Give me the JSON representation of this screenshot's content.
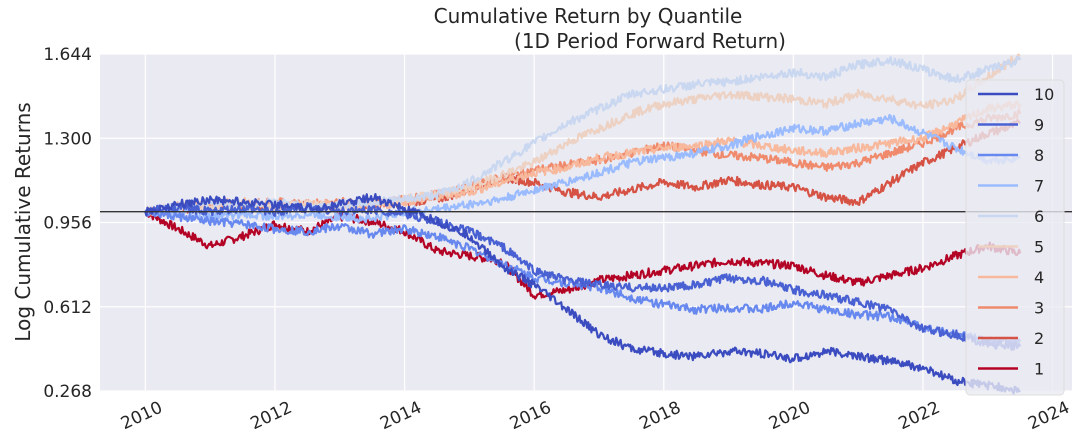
{
  "chart_data": {
    "type": "line",
    "title_line1": "Cumulative Return by Quantile",
    "title_line2": "(1D Period Forward Return)",
    "xlabel": "",
    "ylabel": "Log Cumulative Returns",
    "y_ticks": [
      "0.268",
      "0.612",
      "0.956",
      "1.300",
      "1.644"
    ],
    "ylim": [
      0.268,
      1.644
    ],
    "xlim": [
      2009.3,
      2024.3
    ],
    "x_ticks": [
      "2010",
      "2012",
      "2014",
      "2016",
      "2018",
      "2020",
      "2022",
      "2024"
    ],
    "reference_line": 1.0,
    "grid": true,
    "legend_position": "right",
    "colors": {
      "plot_bg": "#eaeaf2",
      "grid": "#ffffff",
      "reference": "#333333"
    },
    "series": [
      {
        "name": "10",
        "color": "#3b4cc0",
        "x": [
          2010.0,
          2010.5,
          2011.0,
          2011.5,
          2012.0,
          2012.5,
          2013.0,
          2013.5,
          2014.0,
          2014.5,
          2015.0,
          2015.5,
          2016.0,
          2016.5,
          2017.0,
          2017.5,
          2018.0,
          2018.5,
          2019.0,
          2019.5,
          2020.0,
          2020.5,
          2021.0,
          2021.5,
          2022.0,
          2022.5,
          2023.0,
          2023.5
        ],
        "y": [
          1.0,
          1.03,
          1.05,
          1.04,
          1.03,
          1.01,
          1.03,
          1.06,
          1.01,
          0.96,
          0.9,
          0.78,
          0.7,
          0.6,
          0.5,
          0.44,
          0.42,
          0.41,
          0.43,
          0.42,
          0.4,
          0.43,
          0.41,
          0.39,
          0.36,
          0.31,
          0.29,
          0.27
        ]
      },
      {
        "name": "9",
        "color": "#4961d2",
        "x": [
          2010.0,
          2010.5,
          2011.0,
          2011.5,
          2012.0,
          2012.5,
          2013.0,
          2013.5,
          2014.0,
          2014.5,
          2015.0,
          2015.5,
          2016.0,
          2016.5,
          2017.0,
          2017.5,
          2018.0,
          2018.5,
          2019.0,
          2019.5,
          2020.0,
          2020.5,
          2021.0,
          2021.5,
          2022.0,
          2022.5,
          2023.0,
          2023.5
        ],
        "y": [
          1.0,
          1.02,
          1.0,
          1.01,
          1.0,
          1.02,
          1.0,
          1.01,
          0.99,
          0.96,
          0.92,
          0.86,
          0.76,
          0.72,
          0.7,
          0.69,
          0.69,
          0.7,
          0.73,
          0.72,
          0.68,
          0.66,
          0.63,
          0.6,
          0.52,
          0.5,
          0.46,
          0.45
        ]
      },
      {
        "name": "8",
        "color": "#6788ee",
        "x": [
          2010.0,
          2010.5,
          2011.0,
          2011.5,
          2012.0,
          2012.5,
          2013.0,
          2013.5,
          2014.0,
          2014.5,
          2015.0,
          2015.5,
          2016.0,
          2016.5,
          2017.0,
          2017.5,
          2018.0,
          2018.5,
          2019.0,
          2019.5,
          2020.0,
          2020.5,
          2021.0,
          2021.5,
          2022.0,
          2022.5,
          2023.0,
          2023.5
        ],
        "y": [
          1.0,
          0.98,
          0.96,
          0.95,
          0.93,
          0.92,
          0.94,
          0.91,
          0.93,
          0.9,
          0.85,
          0.79,
          0.73,
          0.71,
          0.69,
          0.65,
          0.62,
          0.6,
          0.61,
          0.6,
          0.63,
          0.6,
          0.58,
          0.57,
          0.53,
          0.5,
          0.47,
          0.47
        ]
      },
      {
        "name": "7",
        "color": "#9abbff",
        "x": [
          2010.0,
          2010.5,
          2011.0,
          2011.5,
          2012.0,
          2012.5,
          2013.0,
          2013.5,
          2014.0,
          2014.5,
          2015.0,
          2015.5,
          2016.0,
          2016.5,
          2017.0,
          2017.5,
          2018.0,
          2018.5,
          2019.0,
          2019.5,
          2020.0,
          2020.5,
          2021.0,
          2021.5,
          2022.0,
          2022.5,
          2023.0,
          2023.5
        ],
        "y": [
          1.0,
          1.0,
          0.98,
          0.99,
          0.98,
          0.99,
          0.98,
          0.97,
          1.0,
          1.01,
          1.03,
          1.05,
          1.09,
          1.12,
          1.16,
          1.2,
          1.22,
          1.24,
          1.27,
          1.31,
          1.34,
          1.33,
          1.36,
          1.38,
          1.32,
          1.26,
          1.21,
          1.22
        ]
      },
      {
        "name": "6",
        "color": "#c9d7f0",
        "x": [
          2010.0,
          2010.5,
          2011.0,
          2011.5,
          2012.0,
          2012.5,
          2013.0,
          2013.5,
          2014.0,
          2014.5,
          2015.0,
          2015.5,
          2016.0,
          2016.5,
          2017.0,
          2017.5,
          2018.0,
          2018.5,
          2019.0,
          2019.5,
          2020.0,
          2020.5,
          2021.0,
          2021.5,
          2022.0,
          2022.5,
          2023.0,
          2023.5
        ],
        "y": [
          1.0,
          1.02,
          1.04,
          1.03,
          1.04,
          1.02,
          1.03,
          1.04,
          1.05,
          1.07,
          1.12,
          1.2,
          1.28,
          1.36,
          1.42,
          1.48,
          1.5,
          1.52,
          1.53,
          1.55,
          1.57,
          1.55,
          1.6,
          1.62,
          1.58,
          1.54,
          1.58,
          1.62
        ]
      },
      {
        "name": "5",
        "color": "#edd1c2",
        "x": [
          2010.0,
          2010.5,
          2011.0,
          2011.5,
          2012.0,
          2012.5,
          2013.0,
          2013.5,
          2014.0,
          2014.5,
          2015.0,
          2015.5,
          2016.0,
          2016.5,
          2017.0,
          2017.5,
          2018.0,
          2018.5,
          2019.0,
          2019.5,
          2020.0,
          2020.5,
          2021.0,
          2021.5,
          2022.0,
          2022.5,
          2023.0,
          2023.5
        ],
        "y": [
          1.0,
          1.01,
          1.02,
          1.03,
          1.02,
          1.03,
          1.02,
          1.03,
          1.05,
          1.07,
          1.1,
          1.15,
          1.2,
          1.28,
          1.34,
          1.4,
          1.44,
          1.46,
          1.48,
          1.47,
          1.46,
          1.44,
          1.48,
          1.46,
          1.43,
          1.46,
          1.55,
          1.64
        ]
      },
      {
        "name": "4",
        "color": "#f7b89c",
        "x": [
          2010.0,
          2010.5,
          2011.0,
          2011.5,
          2012.0,
          2012.5,
          2013.0,
          2013.5,
          2014.0,
          2014.5,
          2015.0,
          2015.5,
          2016.0,
          2016.5,
          2017.0,
          2017.5,
          2018.0,
          2018.5,
          2019.0,
          2019.5,
          2020.0,
          2020.5,
          2021.0,
          2021.5,
          2022.0,
          2022.5,
          2023.0,
          2023.5
        ],
        "y": [
          1.0,
          1.02,
          1.03,
          1.04,
          1.02,
          1.03,
          1.03,
          1.02,
          1.04,
          1.06,
          1.08,
          1.12,
          1.16,
          1.18,
          1.22,
          1.24,
          1.26,
          1.27,
          1.29,
          1.27,
          1.25,
          1.24,
          1.26,
          1.28,
          1.3,
          1.36,
          1.42,
          1.44
        ]
      },
      {
        "name": "3",
        "color": "#f08a6c",
        "x": [
          2010.0,
          2010.5,
          2011.0,
          2011.5,
          2012.0,
          2012.5,
          2013.0,
          2013.5,
          2014.0,
          2014.5,
          2015.0,
          2015.5,
          2016.0,
          2016.5,
          2017.0,
          2017.5,
          2018.0,
          2018.5,
          2019.0,
          2019.5,
          2020.0,
          2020.5,
          2021.0,
          2021.5,
          2022.0,
          2022.5,
          2023.0,
          2023.5
        ],
        "y": [
          1.0,
          1.02,
          1.03,
          1.03,
          1.04,
          1.03,
          1.04,
          1.03,
          1.05,
          1.07,
          1.1,
          1.14,
          1.17,
          1.19,
          1.21,
          1.24,
          1.27,
          1.25,
          1.23,
          1.22,
          1.2,
          1.18,
          1.2,
          1.24,
          1.28,
          1.34,
          1.38,
          1.4
        ]
      },
      {
        "name": "2",
        "color": "#d65244",
        "x": [
          2010.0,
          2010.5,
          2011.0,
          2011.5,
          2012.0,
          2012.5,
          2013.0,
          2013.5,
          2014.0,
          2014.5,
          2015.0,
          2015.5,
          2016.0,
          2016.5,
          2017.0,
          2017.5,
          2018.0,
          2018.5,
          2019.0,
          2019.5,
          2020.0,
          2020.5,
          2021.0,
          2021.5,
          2022.0,
          2022.5,
          2023.0,
          2023.5
        ],
        "y": [
          1.0,
          1.01,
          1.02,
          1.03,
          1.02,
          1.03,
          1.02,
          1.03,
          1.04,
          1.05,
          1.09,
          1.14,
          1.12,
          1.08,
          1.06,
          1.09,
          1.12,
          1.1,
          1.13,
          1.11,
          1.1,
          1.06,
          1.04,
          1.12,
          1.2,
          1.26,
          1.32,
          1.36
        ]
      },
      {
        "name": "1",
        "color": "#b40426",
        "x": [
          2010.0,
          2010.5,
          2011.0,
          2011.5,
          2012.0,
          2012.5,
          2013.0,
          2013.5,
          2014.0,
          2014.5,
          2015.0,
          2015.5,
          2016.0,
          2016.5,
          2017.0,
          2017.5,
          2018.0,
          2018.5,
          2019.0,
          2019.5,
          2020.0,
          2020.5,
          2021.0,
          2021.5,
          2022.0,
          2022.5,
          2023.0,
          2023.5
        ],
        "y": [
          1.0,
          0.93,
          0.86,
          0.9,
          0.95,
          0.92,
          0.98,
          0.96,
          0.92,
          0.84,
          0.82,
          0.8,
          0.66,
          0.68,
          0.72,
          0.74,
          0.76,
          0.78,
          0.8,
          0.79,
          0.78,
          0.74,
          0.71,
          0.74,
          0.77,
          0.82,
          0.86,
          0.83
        ]
      }
    ]
  }
}
